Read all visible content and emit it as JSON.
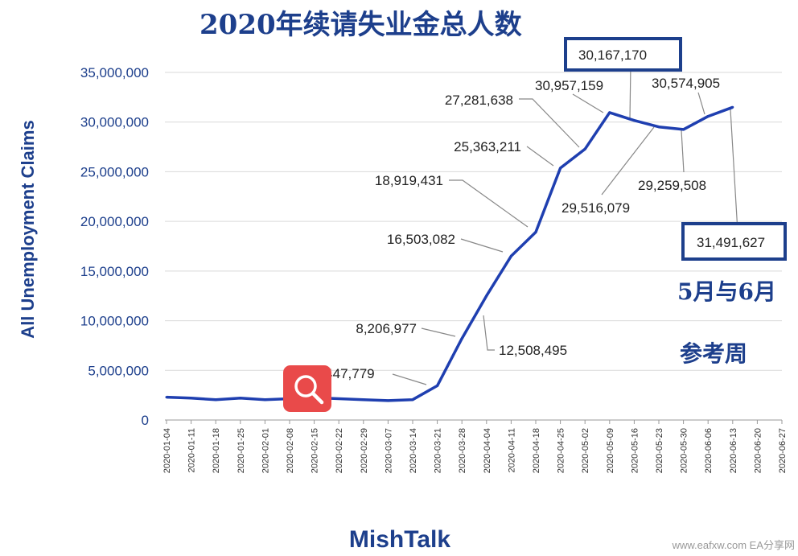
{
  "chart_data": {
    "type": "line",
    "title": "2020年续请失业金总人数",
    "xlabel": "",
    "ylabel": "All Unemployment  Claims",
    "ylim": [
      0,
      35000000
    ],
    "y_ticks": [
      "0",
      "5,000,000",
      "10,000,000",
      "15,000,000",
      "20,000,000",
      "25,000,000",
      "30,000,000",
      "35,000,000"
    ],
    "grid": true,
    "series_color": "#1f3fb0",
    "categories": [
      "2020-01-04",
      "2020-01-11",
      "2020-01-18",
      "2020-01-25",
      "2020-02-01",
      "2020-02-08",
      "2020-02-15",
      "2020-02-22",
      "2020-02-29",
      "2020-03-07",
      "2020-03-14",
      "2020-03-21",
      "2020-03-28",
      "2020-04-04",
      "2020-04-11",
      "2020-04-18",
      "2020-04-25",
      "2020-05-02",
      "2020-05-09",
      "2020-05-16",
      "2020-05-23",
      "2020-05-30",
      "2020-06-06",
      "2020-06-13",
      "2020-06-20",
      "2020-06-27"
    ],
    "series": [
      {
        "values": [
          2300000,
          2200000,
          2050000,
          2200000,
          2050000,
          2150000,
          2250000,
          2150000,
          2050000,
          1950000,
          2050000,
          3447779,
          8206977,
          12508495,
          16503082,
          18919431,
          25363211,
          27281638,
          30957159,
          30167170,
          29516079,
          29259508,
          30574905,
          31491627,
          null,
          null
        ]
      }
    ],
    "annotations": [
      {
        "text": "3,447,779"
      },
      {
        "text": "8,206,977"
      },
      {
        "text": "12,508,495"
      },
      {
        "text": "16,503,082"
      },
      {
        "text": "18,919,431"
      },
      {
        "text": "25,363,211"
      },
      {
        "text": "27,281,638"
      },
      {
        "text": "30,957,159"
      },
      {
        "text": "30,167,170"
      },
      {
        "text": "30,574,905"
      },
      {
        "text": "29,516,079"
      },
      {
        "text": "29,259,508"
      },
      {
        "text": "31,491,627"
      }
    ],
    "side_notes": [
      "5月与6月",
      "参考周"
    ],
    "source": "MishTalk"
  },
  "watermark": "www.eafxw.com  EA分享网",
  "icons": {
    "zoom": "search-icon"
  }
}
